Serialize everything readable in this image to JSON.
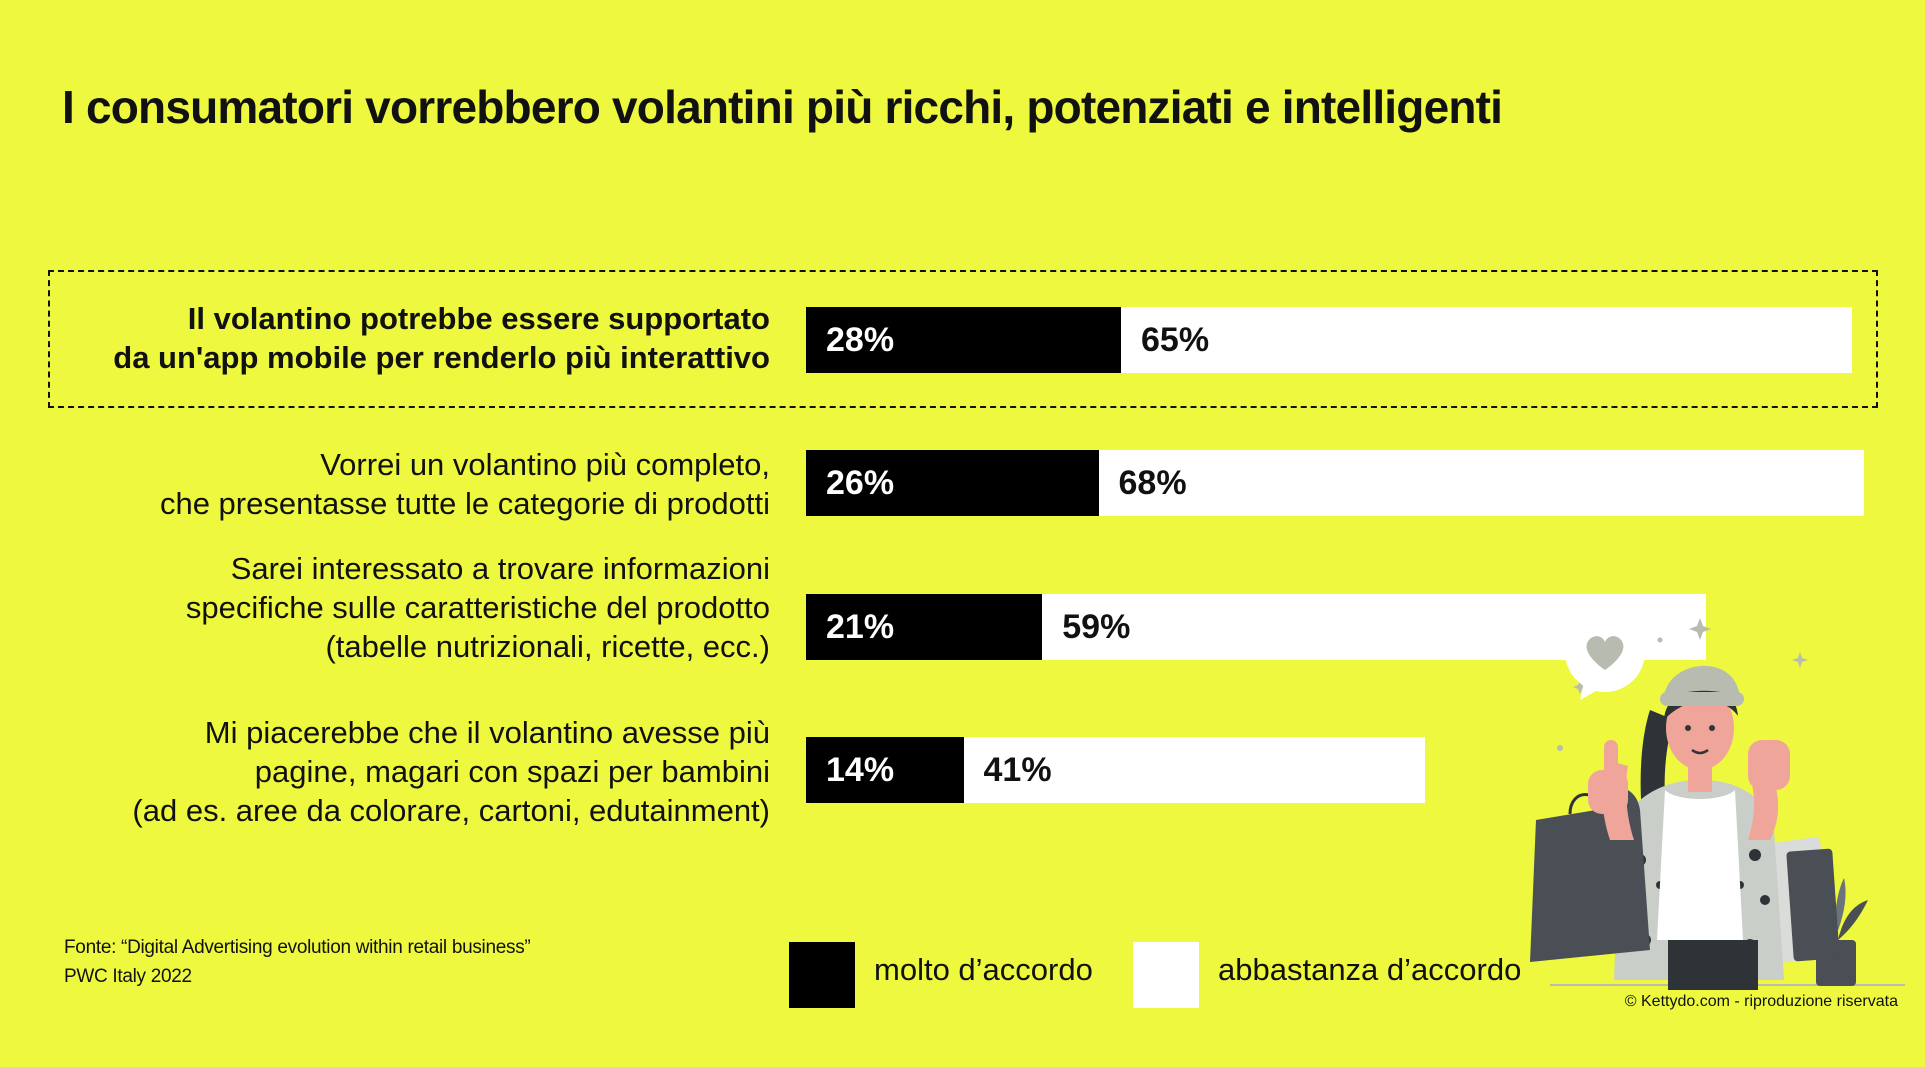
{
  "title": "I consumatori vorrebbero volantini più ricchi, potenziati e intelligenti",
  "chart_data": {
    "type": "bar",
    "orientation": "horizontal",
    "stacked": true,
    "title": "I consumatori vorrebbero volantini più ricchi, potenziati e intelligenti",
    "categories": [
      [
        "Il volantino potrebbe essere supportato",
        "da un'app mobile per renderlo più interattivo"
      ],
      [
        "Vorrei un volantino più completo,",
        "che presentasse tutte le categorie di prodotti"
      ],
      [
        "Sarei interessato a trovare informazioni",
        "specifiche sulle caratteristiche del prodotto",
        "(tabelle nutrizionali, ricette, ecc.)"
      ],
      [
        "Mi piacerebbe che il volantino avesse più",
        "pagine, magari con spazi per bambini",
        "(ad es. aree da colorare, cartoni, edutainment)"
      ]
    ],
    "highlighted_category_index": 0,
    "series": [
      {
        "name": "molto d’accordo",
        "color": "#000000",
        "values": [
          28,
          26,
          21,
          14
        ],
        "labels": [
          "28%",
          "26%",
          "21%",
          "14%"
        ]
      },
      {
        "name": "abbastanza d’accordo",
        "color": "#ffffff",
        "values": [
          65,
          68,
          59,
          41
        ],
        "labels": [
          "65%",
          "68%",
          "59%",
          "41%"
        ]
      }
    ],
    "unit": "%",
    "xlim": [
      0,
      100
    ],
    "grid": false,
    "legend_position": "bottom"
  },
  "source": [
    "Fonte: “Digital Advertising evolution  within retail business”",
    "PWC Italy 2022"
  ],
  "copyright": "© Kettydo.com - riproduzione riservata",
  "colors": {
    "background": "#edf83f",
    "dark": "#000000",
    "light": "#ffffff"
  },
  "illustration": {
    "icon": "woman-shopping-bags-thumbs-up-icon",
    "bubble_icon": "heart-icon"
  }
}
